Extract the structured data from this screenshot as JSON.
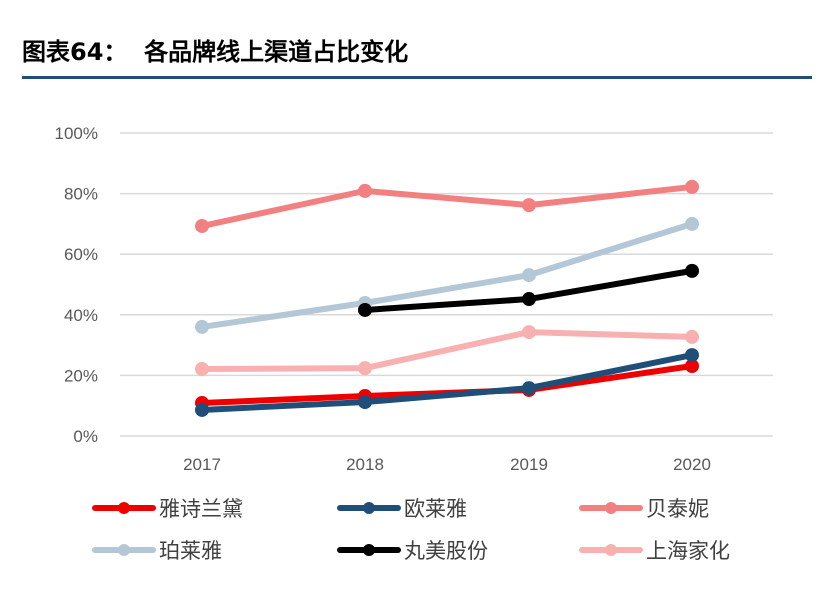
{
  "title": "图表64：  各品牌线上渠道占比变化",
  "chart_data": {
    "type": "line",
    "title": "",
    "xlabel": "",
    "ylabel": "",
    "categories": [
      "2017",
      "2018",
      "2019",
      "2020"
    ],
    "ylim": [
      0,
      100
    ],
    "yticks": [
      "0%",
      "20%",
      "40%",
      "60%",
      "80%",
      "100%"
    ],
    "grid": true,
    "legend_position": "bottom",
    "series": [
      {
        "name": "雅诗兰黛",
        "color": "#ee0000",
        "values": [
          10.9,
          13.2,
          15.2,
          23.1
        ]
      },
      {
        "name": "欧莱雅",
        "color": "#1f4e79",
        "values": [
          8.6,
          11.2,
          15.8,
          26.7
        ]
      },
      {
        "name": "贝泰妮",
        "color": "#f28080",
        "values": [
          69.3,
          80.9,
          76.2,
          82.2
        ]
      },
      {
        "name": "珀莱雅",
        "color": "#b4c7d6",
        "values": [
          36.0,
          43.9,
          53.1,
          70.0
        ]
      },
      {
        "name": "丸美股份",
        "color": "#000000",
        "values": [
          null,
          41.6,
          45.2,
          54.5
        ]
      },
      {
        "name": "上海家化",
        "color": "#f9b0b0",
        "values": [
          22.1,
          22.4,
          34.3,
          32.7
        ]
      }
    ]
  }
}
